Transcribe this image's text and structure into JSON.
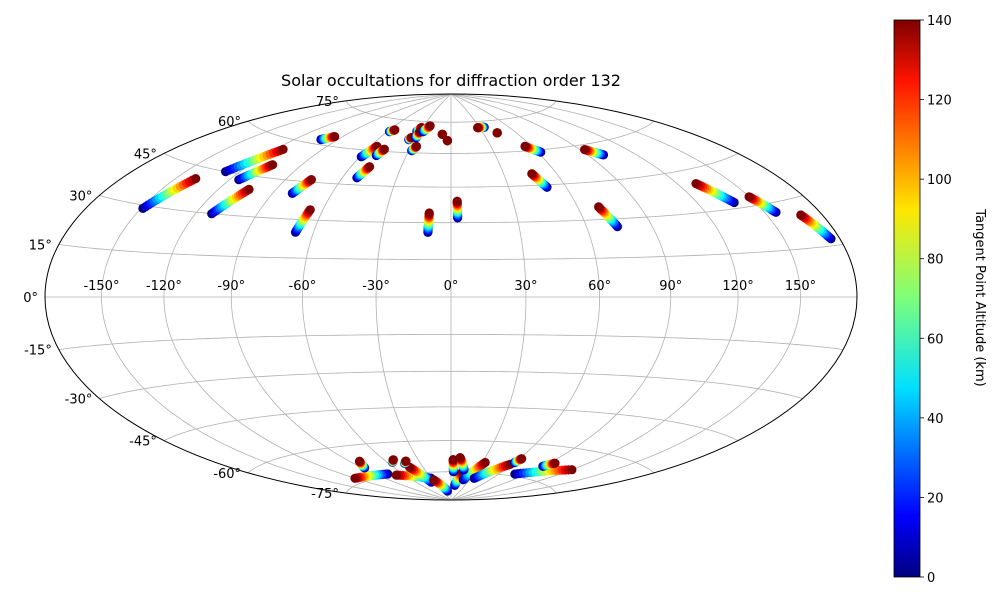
{
  "chart_data": {
    "type": "scatter",
    "title": "Solar occultations for diffraction order 132",
    "projection": "hammer",
    "grid": true,
    "xlim": [
      -180,
      180
    ],
    "ylim": [
      -90,
      90
    ],
    "lon_ticks": [
      -150,
      -120,
      -90,
      -60,
      -30,
      0,
      30,
      60,
      90,
      120,
      150
    ],
    "lon_tick_labels": [
      "-150°",
      "-120°",
      "-90°",
      "-60°",
      "-30°",
      "0°",
      "30°",
      "60°",
      "90°",
      "120°",
      "150°"
    ],
    "lat_ticks": [
      75,
      60,
      45,
      30,
      15,
      0,
      -15,
      -30,
      -45,
      -60,
      -75
    ],
    "lat_tick_labels": [
      "75°",
      "60°",
      "45°",
      "30°",
      "15°",
      "0°",
      "-15°",
      "-30°",
      "-45°",
      "-60°",
      "-75°"
    ],
    "colorbar": {
      "label": "Tangent Point Altitude (km)",
      "colormap": "jet",
      "range": [
        0,
        140
      ],
      "ticks": [
        0,
        20,
        40,
        60,
        80,
        100,
        120,
        140
      ],
      "tick_labels": [
        "0",
        "20",
        "40",
        "60",
        "80",
        "100",
        "120",
        "140"
      ]
    },
    "tracks": [
      {
        "lon_low": -149,
        "lat_low": 29,
        "lon_high": -139,
        "lat_high": 41
      },
      {
        "lon_low": -128,
        "lat_low": 45,
        "lon_high": -115,
        "lat_high": 56
      },
      {
        "lon_low": -112,
        "lat_low": 30,
        "lon_high": -104,
        "lat_high": 40
      },
      {
        "lon_low": -115,
        "lat_low": 43,
        "lon_high": -107,
        "lat_high": 50
      },
      {
        "lon_low": -102,
        "lat_low": 62,
        "lon_high": -96,
        "lat_high": 64
      },
      {
        "lon_low": -80,
        "lat_low": 40,
        "lon_high": -76,
        "lat_high": 46
      },
      {
        "lon_low": -68,
        "lat_low": 25,
        "lon_high": -66,
        "lat_high": 34
      },
      {
        "lon_low": -59,
        "lat_low": 57,
        "lon_high": -55,
        "lat_high": 62
      },
      {
        "lon_low": -52,
        "lat_low": 48,
        "lon_high": -49,
        "lat_high": 53
      },
      {
        "lon_low": -58,
        "lat_low": 69,
        "lon_high": -55,
        "lat_high": 70
      },
      {
        "lon_low": -50,
        "lat_low": 58,
        "lon_high": -48,
        "lat_high": 61
      },
      {
        "lon_low": -35,
        "lat_low": 66,
        "lon_high": -34,
        "lat_high": 67
      },
      {
        "lon_low": -33,
        "lat_low": 70,
        "lon_high": -31,
        "lat_high": 72
      },
      {
        "lon_low": -28,
        "lat_low": 61,
        "lon_high": -26,
        "lat_high": 63
      },
      {
        "lon_low": -30,
        "lat_low": 67,
        "lon_high": -30,
        "lat_high": 70
      },
      {
        "lon_low": -27,
        "lat_low": 70,
        "lon_high": -23,
        "lat_high": 73
      },
      {
        "lon_low": -10,
        "lat_low": 26,
        "lon_high": -10,
        "lat_high": 34
      },
      {
        "lon_low": 3,
        "lat_low": 32,
        "lon_high": 3,
        "lat_high": 39
      },
      {
        "lon_low": -8,
        "lat_low": 69,
        "lon_high": -8,
        "lat_high": 69
      },
      {
        "lon_low": -3,
        "lat_low": 66,
        "lon_high": -3,
        "lat_high": 66
      },
      {
        "lon_low": 35,
        "lat_low": 72,
        "lon_high": 28,
        "lat_high": 72
      },
      {
        "lon_low": 43,
        "lat_low": 69,
        "lon_high": 43,
        "lat_high": 69
      },
      {
        "lon_low": 50,
        "lat_low": 44,
        "lon_high": 46,
        "lat_high": 50
      },
      {
        "lon_low": 62,
        "lat_low": 59,
        "lon_high": 55,
        "lat_high": 62
      },
      {
        "lon_low": 74,
        "lat_low": 27,
        "lon_high": 70,
        "lat_high": 35
      },
      {
        "lon_low": 100,
        "lat_low": 55,
        "lon_high": 93,
        "lat_high": 58
      },
      {
        "lon_low": 139,
        "lat_low": 32,
        "lon_high": 130,
        "lat_high": 40
      },
      {
        "lon_low": 156,
        "lat_low": 27,
        "lon_high": 150,
        "lat_high": 33
      },
      {
        "lon_low": 175,
        "lat_low": 17,
        "lon_high": 168,
        "lat_high": 25
      },
      {
        "lon_low": -77,
        "lat_low": -74,
        "lon_high": -120,
        "lat_high": -73
      },
      {
        "lon_low": -30,
        "lat_low": -78,
        "lon_high": -70,
        "lat_high": -75
      },
      {
        "lon_low": -35,
        "lat_low": -80,
        "lon_high": -44,
        "lat_high": -72
      },
      {
        "lon_low": -12,
        "lat_low": -85,
        "lon_high": -28,
        "lat_high": -79
      },
      {
        "lon_low": 8,
        "lat_low": -82,
        "lon_high": 14,
        "lat_high": -75
      },
      {
        "lon_low": 20,
        "lat_low": -79,
        "lon_high": 33,
        "lat_high": -70
      },
      {
        "lon_low": 35,
        "lat_low": -78,
        "lon_high": 58,
        "lat_high": -70
      },
      {
        "lon_low": 78,
        "lat_low": -74,
        "lon_high": 120,
        "lat_high": -68
      },
      {
        "lon_low": -45,
        "lat_low": -70,
        "lon_high": -42,
        "lat_high": -69
      },
      {
        "lon_low": -88,
        "lat_low": -70,
        "lon_high": -82,
        "lat_high": -67
      },
      {
        "lon_low": -55,
        "lat_low": -69,
        "lon_high": -52,
        "lat_high": -68
      },
      {
        "lon_low": 15,
        "lat_low": -74,
        "lon_high": 8,
        "lat_high": -68
      },
      {
        "lon_low": 3,
        "lat_low": -75,
        "lon_high": 2,
        "lat_high": -69
      },
      {
        "lon_low": 60,
        "lat_low": -69,
        "lon_high": 62,
        "lat_high": -67
      },
      {
        "lon_low": 90,
        "lat_low": -69,
        "lon_high": 95,
        "lat_high": -67
      }
    ]
  }
}
